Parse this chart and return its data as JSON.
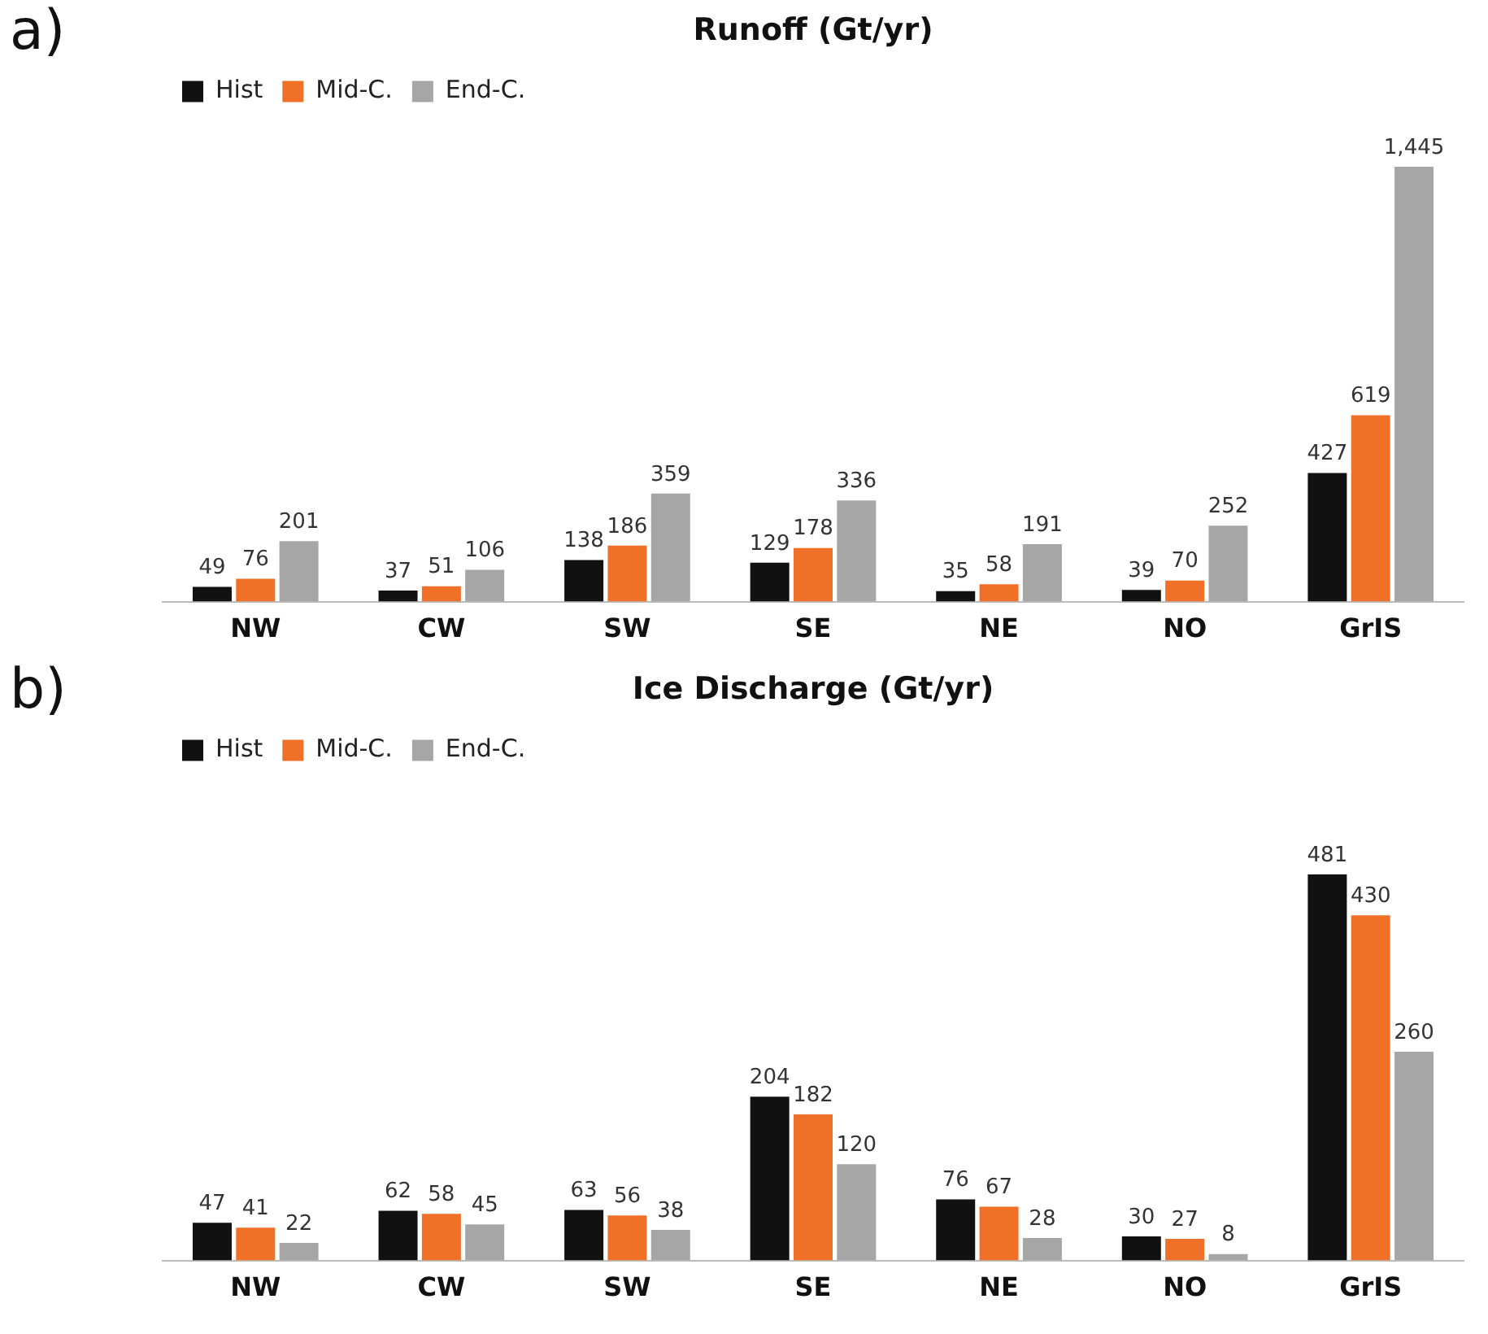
{
  "chart_data": [
    {
      "type": "bar",
      "title": "Runoff (Gt/yr)",
      "annotations": [
        "a)"
      ],
      "categories": [
        "NW",
        "CW",
        "SW",
        "SE",
        "NE",
        "NO",
        "GrIS"
      ],
      "legend": "top left",
      "grid": false,
      "tick_labels": "x",
      "series": [
        {
          "name": "Hist",
          "color": "#111111",
          "values": [
            49,
            37,
            138,
            129,
            35,
            39,
            427
          ],
          "value_labels": [
            "49",
            "37",
            "138",
            "129",
            "35",
            "39",
            "427"
          ]
        },
        {
          "name": "Mid-C.",
          "color": "#f07028",
          "values": [
            76,
            51,
            186,
            178,
            58,
            70,
            619
          ],
          "value_labels": [
            "76",
            "51",
            "186",
            "178",
            "58",
            "70",
            "619"
          ]
        },
        {
          "name": "End-C.",
          "color": "#a6a6a6",
          "values": [
            201,
            106,
            359,
            336,
            191,
            252,
            1445
          ],
          "value_labels": [
            "201",
            "106",
            "359",
            "336",
            "191",
            "252",
            "1,445"
          ]
        }
      ]
    },
    {
      "type": "bar",
      "title": "Ice Discharge (Gt/yr)",
      "annotations": [
        "b)"
      ],
      "categories": [
        "NW",
        "CW",
        "SW",
        "SE",
        "NE",
        "NO",
        "GrIS"
      ],
      "legend": "top left",
      "grid": false,
      "tick_labels": "x",
      "series": [
        {
          "name": "Hist",
          "color": "#111111",
          "values": [
            47,
            62,
            63,
            204,
            76,
            30,
            481
          ],
          "value_labels": [
            "47",
            "62",
            "63",
            "204",
            "76",
            "30",
            "481"
          ]
        },
        {
          "name": "Mid-C.",
          "color": "#f07028",
          "values": [
            41,
            58,
            56,
            182,
            67,
            27,
            430
          ],
          "value_labels": [
            "41",
            "58",
            "56",
            "182",
            "67",
            "27",
            "430"
          ]
        },
        {
          "name": "End-C.",
          "color": "#a6a6a6",
          "values": [
            22,
            45,
            38,
            120,
            28,
            8,
            260
          ],
          "value_labels": [
            "22",
            "45",
            "38",
            "120",
            "28",
            "8",
            "260"
          ]
        }
      ]
    }
  ]
}
